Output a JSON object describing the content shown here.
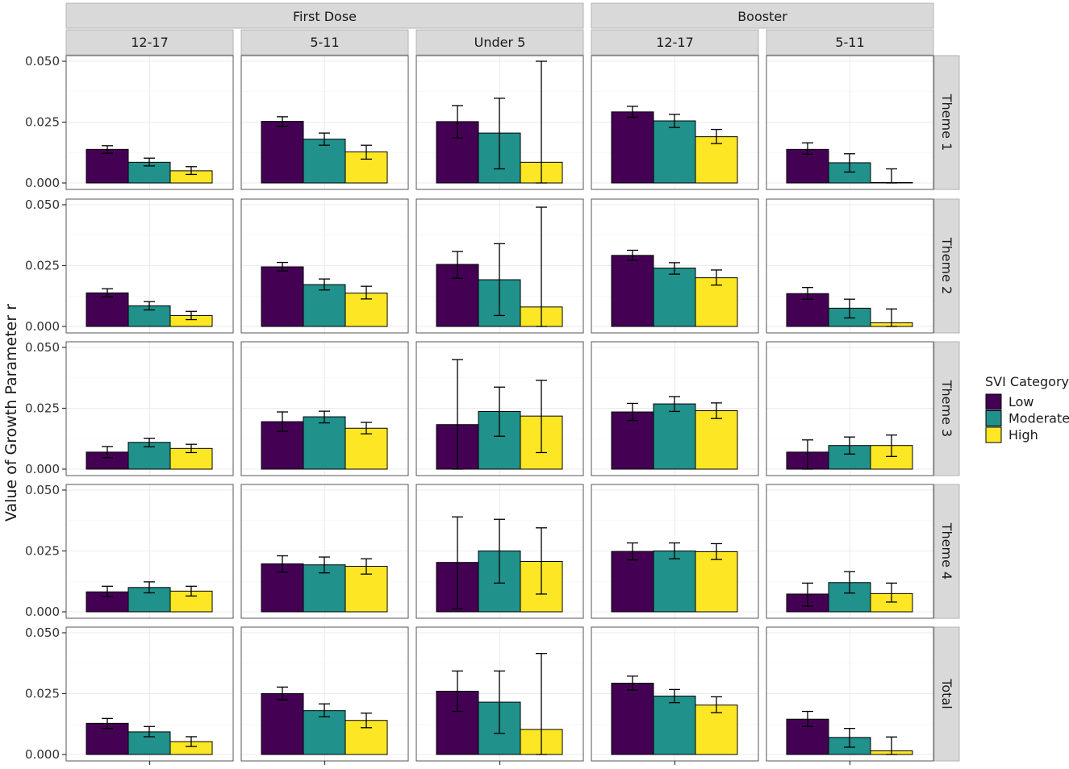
{
  "chart_data": {
    "type": "bar",
    "ylabel": "Value of Growth Parameter r",
    "ylim": [
      0,
      0.05
    ],
    "yticks": [
      "0.000",
      "0.025",
      "0.050"
    ],
    "yticks_values": [
      0,
      0.025,
      0.05
    ],
    "legend": {
      "title": "SVI Category",
      "position": "right",
      "entries": [
        "Low",
        "Moderate",
        "High"
      ],
      "colors": [
        "#440154",
        "#21918c",
        "#fde725"
      ]
    },
    "column_groups": [
      {
        "label": "First Dose",
        "columns": [
          "12-17",
          "5-11",
          "Under 5"
        ]
      },
      {
        "label": "Booster",
        "columns": [
          "12-17",
          "5-11"
        ]
      }
    ],
    "rows": [
      "Theme 1",
      "Theme 2",
      "Theme 3",
      "Theme 4",
      "Total"
    ],
    "panels": [
      [
        {
          "values": [
            0.0138,
            0.0085,
            0.005
          ],
          "lower": [
            0.0122,
            0.007,
            0.0035
          ],
          "upper": [
            0.0153,
            0.0102,
            0.0067
          ]
        },
        {
          "values": [
            0.0253,
            0.018,
            0.0128
          ],
          "lower": [
            0.0233,
            0.0155,
            0.0098
          ],
          "upper": [
            0.0272,
            0.0205,
            0.0155
          ]
        },
        {
          "values": [
            0.0252,
            0.0205,
            0.0085
          ],
          "lower": [
            0.0185,
            0.0058,
            0.0
          ],
          "upper": [
            0.0318,
            0.0348,
            0.05
          ]
        },
        {
          "values": [
            0.0292,
            0.0255,
            0.019
          ],
          "lower": [
            0.027,
            0.0228,
            0.0162
          ],
          "upper": [
            0.0315,
            0.0282,
            0.022
          ]
        },
        {
          "values": [
            0.0138,
            0.0083,
            0.0002
          ],
          "lower": [
            0.0118,
            0.0045,
            0.0
          ],
          "upper": [
            0.0165,
            0.012,
            0.0058
          ]
        }
      ],
      [
        {
          "values": [
            0.0138,
            0.0085,
            0.0045
          ],
          "lower": [
            0.0122,
            0.0068,
            0.0028
          ],
          "upper": [
            0.0155,
            0.0102,
            0.0062
          ]
        },
        {
          "values": [
            0.0245,
            0.0172,
            0.0137
          ],
          "lower": [
            0.0228,
            0.015,
            0.0113
          ],
          "upper": [
            0.0263,
            0.0195,
            0.0165
          ]
        },
        {
          "values": [
            0.0255,
            0.0192,
            0.008
          ],
          "lower": [
            0.0198,
            0.0045,
            0.0
          ],
          "upper": [
            0.0308,
            0.034,
            0.049
          ]
        },
        {
          "values": [
            0.0292,
            0.024,
            0.02
          ],
          "lower": [
            0.0272,
            0.0215,
            0.017
          ],
          "upper": [
            0.0313,
            0.0262,
            0.0232
          ]
        },
        {
          "values": [
            0.0135,
            0.0075,
            0.0015
          ],
          "lower": [
            0.0112,
            0.0035,
            0.0
          ],
          "upper": [
            0.016,
            0.0112,
            0.0072
          ]
        }
      ],
      [
        {
          "values": [
            0.007,
            0.011,
            0.0085
          ],
          "lower": [
            0.0047,
            0.0092,
            0.0068
          ],
          "upper": [
            0.0093,
            0.0127,
            0.0102
          ]
        },
        {
          "values": [
            0.0195,
            0.0215,
            0.0168
          ],
          "lower": [
            0.0155,
            0.019,
            0.0145
          ],
          "upper": [
            0.0235,
            0.0238,
            0.0192
          ]
        },
        {
          "values": [
            0.0183,
            0.0237,
            0.0218
          ],
          "lower": [
            0.0,
            0.0135,
            0.0068
          ],
          "upper": [
            0.045,
            0.0337,
            0.0365
          ]
        },
        {
          "values": [
            0.0235,
            0.0268,
            0.024
          ],
          "lower": [
            0.02,
            0.0237,
            0.0208
          ],
          "upper": [
            0.027,
            0.0298,
            0.0272
          ]
        },
        {
          "values": [
            0.007,
            0.0097,
            0.0097
          ],
          "lower": [
            0.0,
            0.0062,
            0.0052
          ],
          "upper": [
            0.012,
            0.0132,
            0.014
          ]
        }
      ],
      [
        {
          "values": [
            0.0082,
            0.01,
            0.0085
          ],
          "lower": [
            0.0062,
            0.0078,
            0.0065
          ],
          "upper": [
            0.0105,
            0.0123,
            0.0105
          ]
        },
        {
          "values": [
            0.0197,
            0.0193,
            0.0187
          ],
          "lower": [
            0.0163,
            0.016,
            0.0155
          ],
          "upper": [
            0.023,
            0.0225,
            0.0218
          ]
        },
        {
          "values": [
            0.0203,
            0.025,
            0.0207
          ],
          "lower": [
            0.0013,
            0.0118,
            0.0073
          ],
          "upper": [
            0.039,
            0.038,
            0.0345
          ]
        },
        {
          "values": [
            0.0248,
            0.025,
            0.0247
          ],
          "lower": [
            0.0213,
            0.0218,
            0.0215
          ],
          "upper": [
            0.0283,
            0.0283,
            0.028
          ]
        },
        {
          "values": [
            0.0073,
            0.012,
            0.0075
          ],
          "lower": [
            0.0023,
            0.0077,
            0.004
          ],
          "upper": [
            0.0118,
            0.0165,
            0.0118
          ]
        }
      ],
      [
        {
          "values": [
            0.0128,
            0.0093,
            0.0053
          ],
          "lower": [
            0.0107,
            0.0073,
            0.0033
          ],
          "upper": [
            0.0148,
            0.0115,
            0.0073
          ]
        },
        {
          "values": [
            0.025,
            0.018,
            0.014
          ],
          "lower": [
            0.0225,
            0.0155,
            0.011
          ],
          "upper": [
            0.0277,
            0.0208,
            0.017
          ]
        },
        {
          "values": [
            0.026,
            0.0215,
            0.0103
          ],
          "lower": [
            0.0177,
            0.0087,
            0.0
          ],
          "upper": [
            0.0343,
            0.0343,
            0.0415
          ]
        },
        {
          "values": [
            0.0293,
            0.024,
            0.0203
          ],
          "lower": [
            0.0265,
            0.0213,
            0.0172
          ],
          "upper": [
            0.0322,
            0.0267,
            0.0237
          ]
        },
        {
          "values": [
            0.0145,
            0.007,
            0.0015
          ],
          "lower": [
            0.0115,
            0.003,
            0.0
          ],
          "upper": [
            0.0177,
            0.0107,
            0.0072
          ]
        }
      ]
    ]
  }
}
